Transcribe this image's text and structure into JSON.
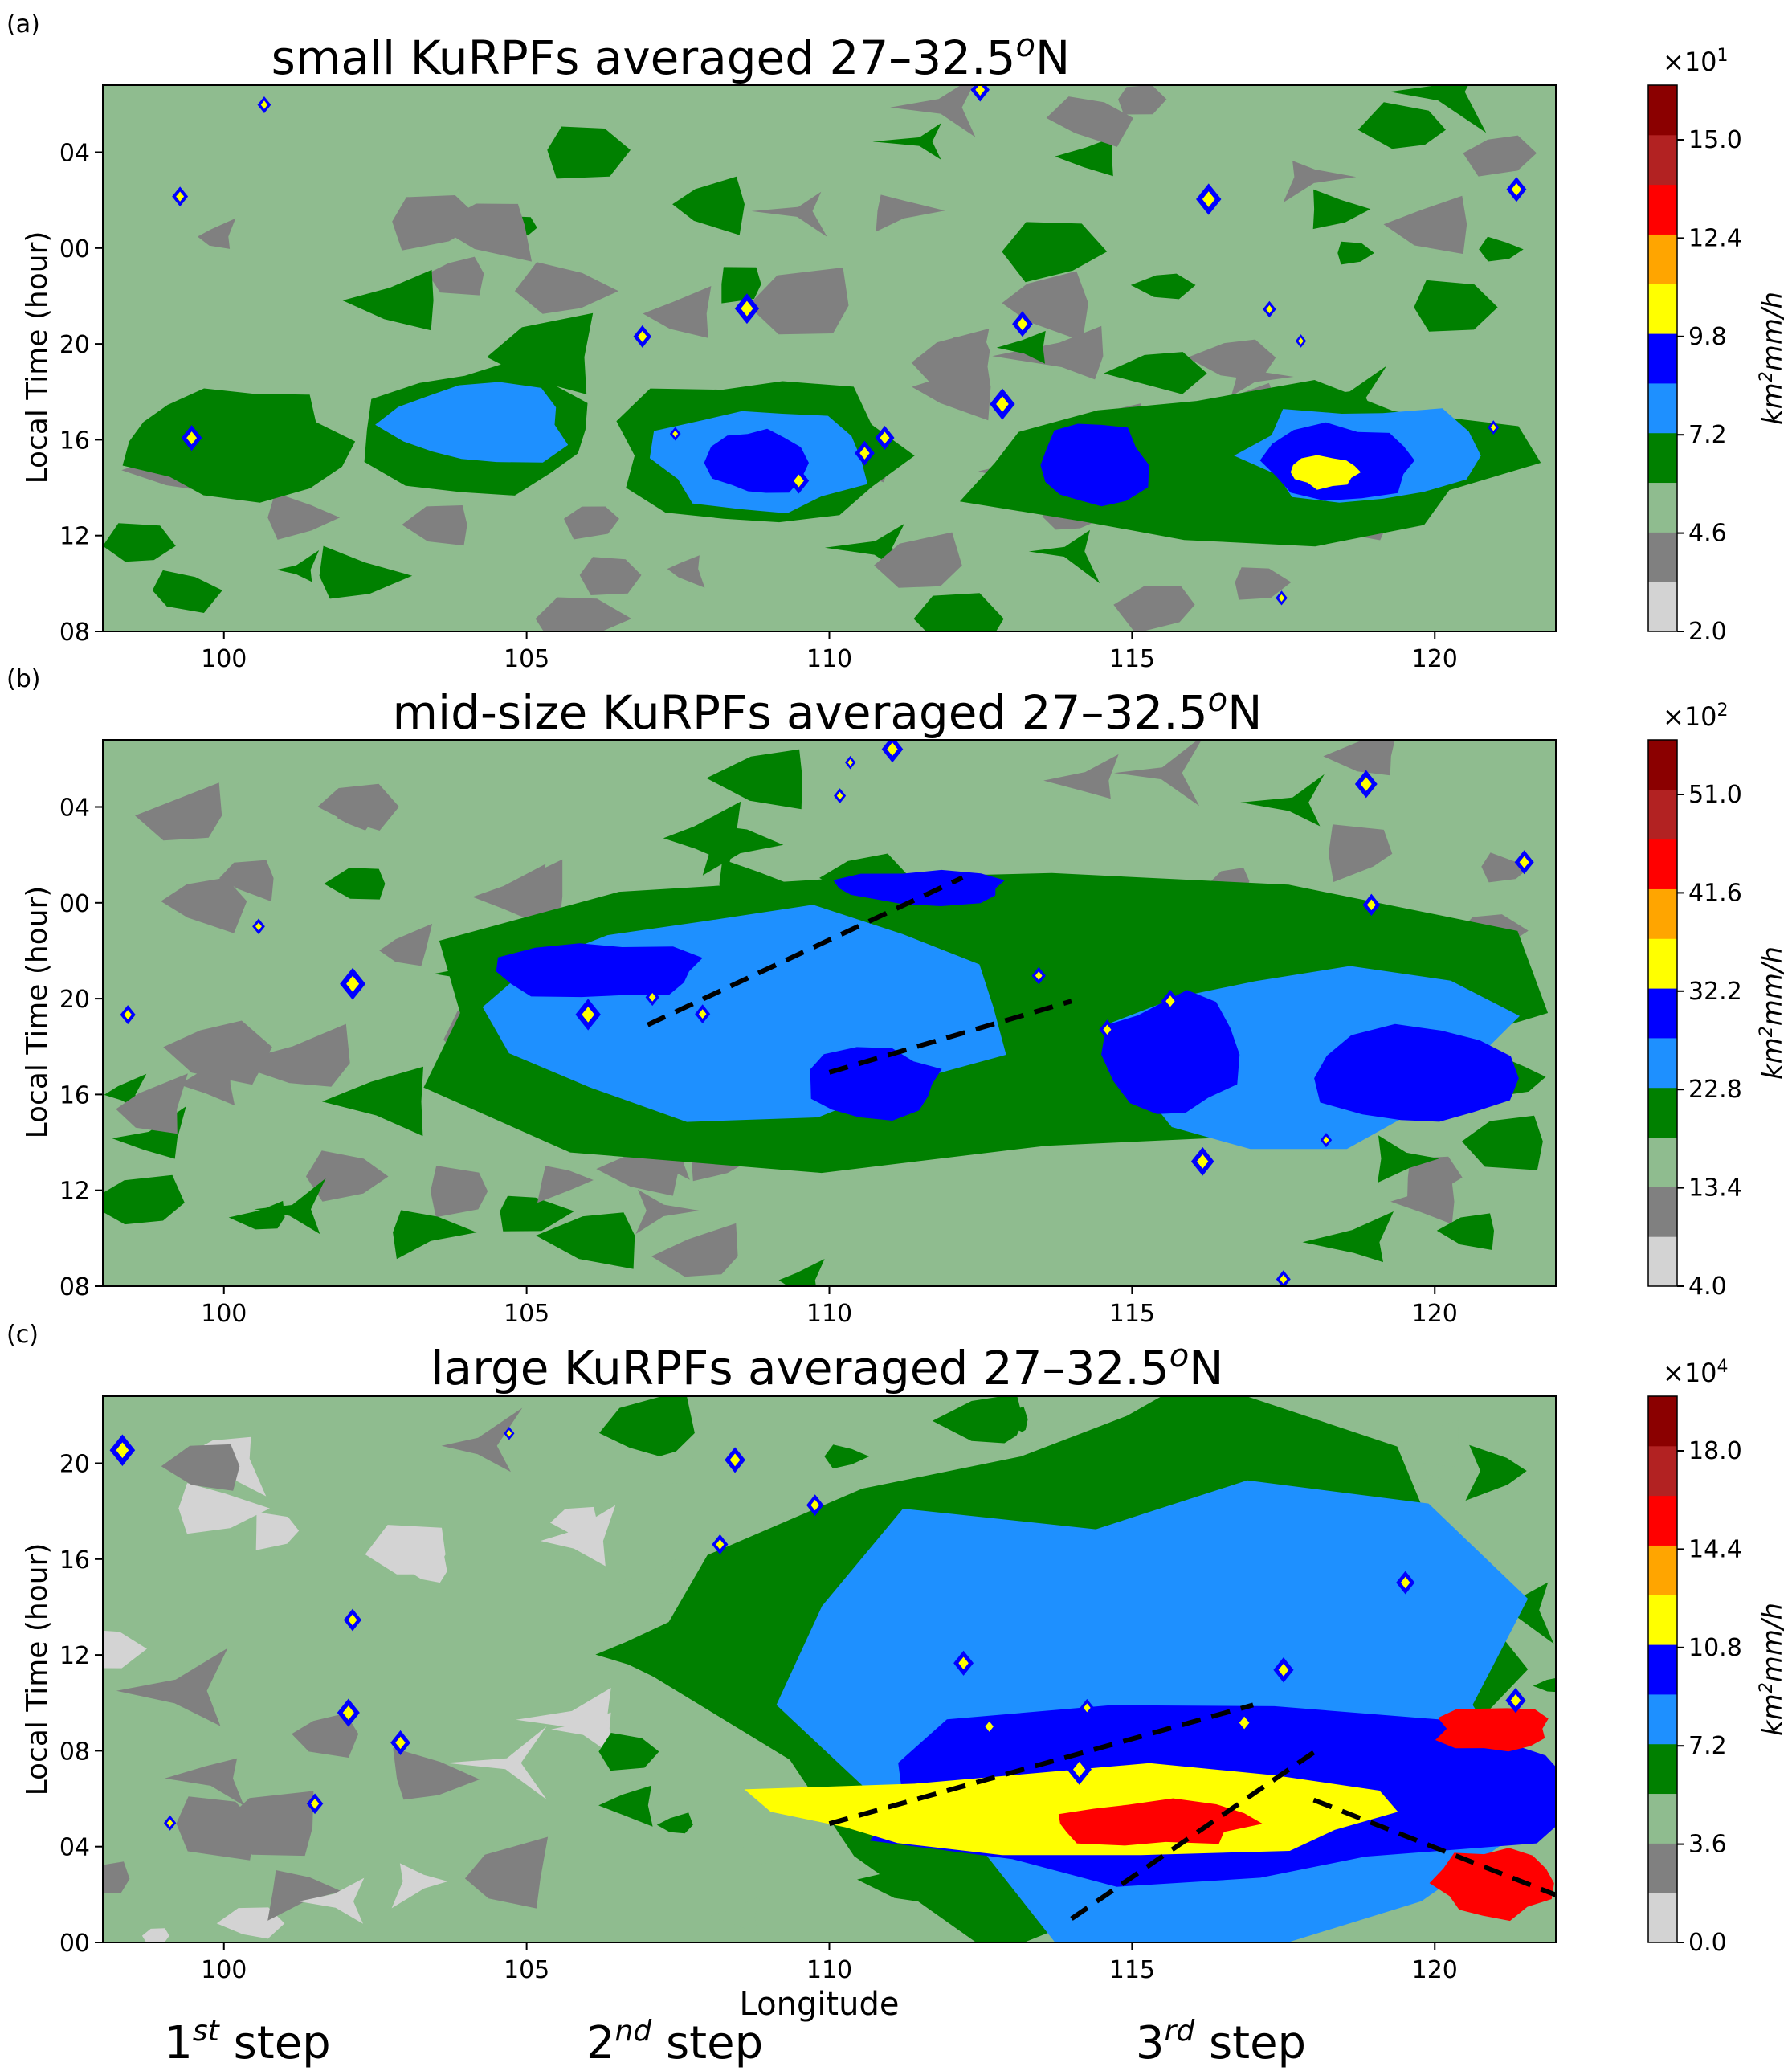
{
  "chart_data": [
    {
      "type": "heatmap",
      "panel_label": "(a)",
      "title": "small KuRPFs averaged 27–32.5",
      "title_superscript": "o",
      "title_suffix": "N",
      "ylabel": "Local Time (hour)",
      "xlabel": "",
      "xlim": [
        98,
        122
      ],
      "y_ticks": [
        "08",
        "12",
        "16",
        "20",
        "00",
        "04"
      ],
      "x_ticks": [
        "100",
        "105",
        "110",
        "115",
        "120"
      ],
      "colorbar": {
        "multiplier": "×10",
        "multiplier_exp": "1",
        "label": "km",
        "label_exp": "2",
        "label_suffix": "mm/h",
        "tick_labels": [
          "2.0",
          "4.6",
          "7.2",
          "9.8",
          "12.4",
          "15.0"
        ]
      },
      "bands": [
        {
          "x": [
            98,
            102.2
          ],
          "y": [
            13.5,
            18.5
          ],
          "level": 3
        },
        {
          "x": [
            102.2,
            106.5
          ],
          "y": [
            13.5,
            19.5
          ],
          "level": 3
        },
        {
          "x": [
            102.6,
            105.8
          ],
          "y": [
            14.8,
            18.6
          ],
          "level": 4
        },
        {
          "x": [
            106.2,
            111.2
          ],
          "y": [
            12.0,
            18.8
          ],
          "level": 3
        },
        {
          "x": [
            107.0,
            110.8
          ],
          "y": [
            12.8,
            17.8
          ],
          "level": 4
        },
        {
          "x": [
            108.0,
            109.6
          ],
          "y": [
            13.6,
            16.6
          ],
          "level": 5
        },
        {
          "x": [
            112.0,
            121.8
          ],
          "y": [
            11.6,
            18.6
          ],
          "level": 3
        },
        {
          "x": [
            113.3,
            115.3
          ],
          "y": [
            13.0,
            17.0
          ],
          "level": 5
        },
        {
          "x": [
            116.8,
            120.8
          ],
          "y": [
            13.0,
            17.8
          ],
          "level": 4
        },
        {
          "x": [
            117.2,
            119.8
          ],
          "y": [
            13.6,
            16.8
          ],
          "level": 5
        },
        {
          "x": [
            117.6,
            118.8
          ],
          "y": [
            14.0,
            15.4
          ],
          "level": 6
        }
      ]
    },
    {
      "type": "heatmap",
      "panel_label": "(b)",
      "title": "mid-size KuRPFs averaged 27–32.5",
      "title_superscript": "o",
      "title_suffix": "N",
      "ylabel": "Local Time (hour)",
      "xlabel": "",
      "xlim": [
        98,
        122
      ],
      "y_ticks": [
        "08",
        "12",
        "16",
        "20",
        "00",
        "04"
      ],
      "x_ticks": [
        "100",
        "105",
        "110",
        "115",
        "120"
      ],
      "colorbar": {
        "multiplier": "×10",
        "multiplier_exp": "2",
        "label": "km",
        "label_exp": "2",
        "label_suffix": "mm/h",
        "tick_labels": [
          "4.0",
          "13.4",
          "22.8",
          "32.2",
          "41.6",
          "51.0"
        ]
      },
      "bands": [
        {
          "x": [
            102.0,
            121.8
          ],
          "y": [
            12.0,
            27.0
          ],
          "level": 3
        },
        {
          "x": [
            104.0,
            113.5
          ],
          "y": [
            15.0,
            24.5
          ],
          "level": 4
        },
        {
          "x": [
            114.0,
            121.5
          ],
          "y": [
            13.5,
            21.5
          ],
          "level": 4
        },
        {
          "x": [
            104.5,
            108.0
          ],
          "y": [
            20.0,
            22.5
          ],
          "level": 5
        },
        {
          "x": [
            109.5,
            112.0
          ],
          "y": [
            15.0,
            18.0
          ],
          "level": 5
        },
        {
          "x": [
            114.5,
            116.8
          ],
          "y": [
            15.0,
            20.5
          ],
          "level": 5
        },
        {
          "x": [
            118.0,
            121.5
          ],
          "y": [
            14.5,
            19.0
          ],
          "level": 5
        },
        {
          "x": [
            110.0,
            113.0
          ],
          "y": [
            24.0,
            25.5
          ],
          "level": 5
        }
      ],
      "dashed_lines": [
        {
          "x": [
            107.0,
            112.2
          ],
          "y": [
            19.0,
            25.2
          ]
        },
        {
          "x": [
            110.0,
            114.0
          ],
          "y": [
            17.0,
            20.0
          ]
        }
      ]
    },
    {
      "type": "heatmap",
      "panel_label": "(c)",
      "title": "large KuRPFs averaged 27–32.5",
      "title_superscript": "o",
      "title_suffix": "N",
      "ylabel": "Local Time (hour)",
      "xlabel": "Longitude",
      "xlim": [
        98,
        122
      ],
      "y_ticks": [
        "00",
        "04",
        "08",
        "12",
        "16",
        "20"
      ],
      "x_ticks": [
        "100",
        "105",
        "110",
        "115",
        "120"
      ],
      "colorbar": {
        "multiplier": "×10",
        "multiplier_exp": "4",
        "label": "km",
        "label_exp": "2",
        "label_suffix": "mm/h",
        "tick_labels": [
          "0.0",
          "3.6",
          "7.2",
          "10.8",
          "14.4",
          "18.0"
        ]
      },
      "bands": [
        {
          "x": [
            107.0,
            122.0
          ],
          "y": [
            0.0,
            23.0
          ],
          "level": 3
        },
        {
          "x": [
            109.0,
            122.0
          ],
          "y": [
            0.0,
            20.0
          ],
          "level": 4
        },
        {
          "x": [
            110.0,
            122.0
          ],
          "y": [
            2.0,
            10.0
          ],
          "level": 5
        },
        {
          "x": [
            108.5,
            119.5
          ],
          "y": [
            3.5,
            7.5
          ],
          "level": 6
        },
        {
          "x": [
            113.5,
            117.0
          ],
          "y": [
            4.0,
            6.0
          ],
          "level": 8
        },
        {
          "x": [
            120.0,
            122.0
          ],
          "y": [
            1.0,
            4.0
          ],
          "level": 8
        },
        {
          "x": [
            120.0,
            122.0
          ],
          "y": [
            8.0,
            10.0
          ],
          "level": 8
        }
      ],
      "dashed_lines": [
        {
          "x": [
            110.0,
            117.0
          ],
          "y": [
            5.0,
            10.0
          ]
        },
        {
          "x": [
            114.0,
            118.0
          ],
          "y": [
            1.0,
            8.0
          ]
        },
        {
          "x": [
            118.0,
            122.0
          ],
          "y": [
            6.0,
            2.0
          ]
        }
      ],
      "step_labels": [
        {
          "base": "1",
          "sup": "st",
          "text": " step"
        },
        {
          "base": "2",
          "sup": "nd",
          "text": " step"
        },
        {
          "base": "3",
          "sup": "rd",
          "text": " step"
        }
      ]
    }
  ],
  "colors": {
    "levels": [
      "#d3d3d3",
      "#808080",
      "#8fbc8f",
      "#008000",
      "#1e90ff",
      "#0000ff",
      "#ffff00",
      "#ffa500",
      "#ff0000",
      "#b22222",
      "#8b0000"
    ]
  }
}
